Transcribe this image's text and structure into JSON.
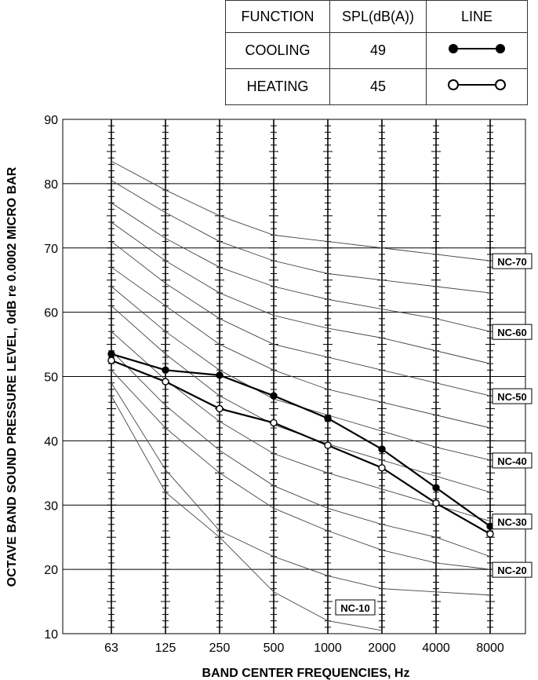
{
  "legend_table": {
    "headers": [
      "FUNCTION",
      "SPL(dB(A))",
      "LINE"
    ],
    "rows": [
      {
        "function": "COOLING",
        "spl": "49",
        "marker": "filled"
      },
      {
        "function": "HEATING",
        "spl": "45",
        "marker": "open"
      }
    ]
  },
  "chart_data": {
    "type": "line",
    "xlabel": "BAND CENTER FREQUENCIES, Hz",
    "ylabel": "OCTAVE BAND SOUND PRESSURE LEVEL, 0dB re 0.0002 MICRO BAR",
    "categories": [
      "63",
      "125",
      "250",
      "500",
      "1000",
      "2000",
      "4000",
      "8000"
    ],
    "ylim": [
      10,
      90
    ],
    "yticks": [
      10,
      20,
      30,
      40,
      50,
      60,
      70,
      80,
      90
    ],
    "grid": true,
    "series": [
      {
        "name": "COOLING",
        "marker": "filled",
        "values": [
          53.5,
          51,
          50.2,
          47,
          43.5,
          38.7,
          32.7,
          26.7
        ]
      },
      {
        "name": "HEATING",
        "marker": "open",
        "values": [
          52.5,
          49.2,
          45,
          42.8,
          39.3,
          35.8,
          30.3,
          25.5
        ]
      }
    ],
    "nc_curves": [
      {
        "label": "NC-70",
        "values": [
          83.5,
          79,
          75,
          72,
          71,
          70,
          69,
          68
        ]
      },
      {
        "label": "",
        "values": [
          80.5,
          75.5,
          71,
          68,
          66,
          65,
          64,
          63
        ]
      },
      {
        "label": "NC-60",
        "values": [
          77,
          71.5,
          67,
          64,
          62,
          60.5,
          59,
          57
        ]
      },
      {
        "label": "",
        "values": [
          74,
          68,
          63,
          59.5,
          57.5,
          56,
          54,
          52
        ]
      },
      {
        "label": "NC-50",
        "values": [
          71,
          64.5,
          59,
          55,
          53,
          51,
          49,
          47
        ]
      },
      {
        "label": "",
        "values": [
          67,
          61,
          55,
          51,
          48,
          46,
          44,
          42
        ]
      },
      {
        "label": "NC-40",
        "values": [
          64,
          57,
          51,
          46.5,
          44,
          41.5,
          39,
          37
        ]
      },
      {
        "label": "",
        "values": [
          61,
          53.5,
          47,
          42.5,
          39.5,
          37,
          34.5,
          32
        ]
      },
      {
        "label": "NC-30",
        "values": [
          57,
          49.5,
          43,
          38,
          35,
          32.5,
          30,
          27.5
        ]
      },
      {
        "label": "",
        "values": [
          54,
          45.5,
          38.5,
          33,
          29.5,
          27,
          25,
          22
        ]
      },
      {
        "label": "NC-20",
        "values": [
          51,
          42,
          35,
          29.5,
          26,
          23,
          21,
          20
        ]
      },
      {
        "label": "",
        "values": [
          49,
          35.5,
          26,
          22,
          19,
          17,
          16.5,
          16
        ]
      },
      {
        "label": "NC-10",
        "values": [
          47,
          32,
          25,
          16.5,
          12,
          10.5,
          null,
          null
        ]
      }
    ]
  }
}
